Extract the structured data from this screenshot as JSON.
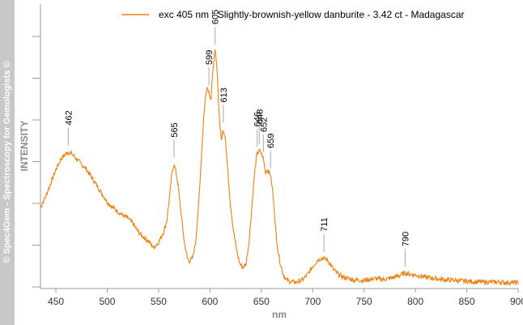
{
  "watermark": "© Spec4Gem - Spectroscopy for Gemologists ©",
  "colors": {
    "series": "#f08010",
    "axis": "#999999",
    "leader": "#aaaaaa"
  },
  "chart_data": {
    "type": "line",
    "title": "",
    "xlabel": "nm",
    "ylabel": "INTENSITY",
    "xlim": [
      435,
      900
    ],
    "ylim": [
      0,
      1
    ],
    "xticks": [
      450,
      500,
      550,
      600,
      650,
      700,
      750,
      800,
      850,
      900
    ],
    "xtick_labels": [
      "450",
      "500",
      "550",
      "600",
      "650",
      "700",
      "750",
      "800",
      "850",
      "900"
    ],
    "y_tick_count": 7,
    "y_tick_labels_shown": false,
    "grid": false,
    "legend_position": "top-center",
    "series": [
      {
        "name": "exc 405 nm - Slightly-brownish-yellow danburite - 3.42 ct - Madagascar",
        "color": "#f08010",
        "x": [
          435,
          440,
          445,
          450,
          455,
          460,
          462,
          465,
          470,
          475,
          480,
          485,
          490,
          495,
          500,
          505,
          510,
          515,
          520,
          525,
          530,
          535,
          540,
          545,
          550,
          555,
          558,
          561,
          563,
          565,
          567,
          569,
          571,
          573,
          575,
          578,
          580,
          583,
          586,
          589,
          592,
          594,
          596,
          597,
          599,
          601,
          603,
          605,
          607,
          609,
          611,
          613,
          615,
          617,
          620,
          623,
          626,
          629,
          632,
          635,
          638,
          641,
          643,
          645,
          646,
          648,
          650,
          652,
          654,
          656,
          659,
          661,
          663,
          665,
          668,
          671,
          674,
          677,
          680,
          685,
          690,
          695,
          700,
          705,
          708,
          711,
          714,
          717,
          720,
          725,
          730,
          740,
          750,
          760,
          770,
          780,
          790,
          800,
          810,
          820,
          830,
          840,
          850,
          860,
          870,
          880,
          890,
          900
        ],
        "y": [
          0.29,
          0.33,
          0.38,
          0.43,
          0.47,
          0.49,
          0.495,
          0.49,
          0.47,
          0.45,
          0.43,
          0.4,
          0.37,
          0.34,
          0.31,
          0.29,
          0.275,
          0.26,
          0.25,
          0.23,
          0.2,
          0.18,
          0.165,
          0.14,
          0.16,
          0.2,
          0.24,
          0.34,
          0.42,
          0.45,
          0.42,
          0.37,
          0.3,
          0.23,
          0.16,
          0.1,
          0.09,
          0.1,
          0.16,
          0.3,
          0.5,
          0.63,
          0.71,
          0.74,
          0.72,
          0.69,
          0.81,
          0.87,
          0.8,
          0.63,
          0.54,
          0.58,
          0.55,
          0.44,
          0.3,
          0.2,
          0.13,
          0.08,
          0.065,
          0.08,
          0.16,
          0.3,
          0.4,
          0.47,
          0.49,
          0.5,
          0.49,
          0.47,
          0.42,
          0.43,
          0.41,
          0.35,
          0.26,
          0.16,
          0.09,
          0.045,
          0.02,
          0.015,
          0.012,
          0.012,
          0.02,
          0.04,
          0.07,
          0.095,
          0.1,
          0.1,
          0.095,
          0.08,
          0.06,
          0.04,
          0.03,
          0.02,
          0.018,
          0.025,
          0.022,
          0.03,
          0.045,
          0.038,
          0.03,
          0.025,
          0.02,
          0.018,
          0.015,
          0.013,
          0.012,
          0.012,
          0.01,
          0.01
        ]
      }
    ],
    "annotations": [
      {
        "label": "462",
        "x": 462,
        "y": 0.495
      },
      {
        "label": "565",
        "x": 565,
        "y": 0.45
      },
      {
        "label": "599",
        "x": 599,
        "y": 0.72
      },
      {
        "label": "605",
        "x": 605,
        "y": 0.87
      },
      {
        "label": "613",
        "x": 613,
        "y": 0.58
      },
      {
        "label": "646",
        "x": 646,
        "y": 0.49
      },
      {
        "label": "648",
        "x": 648,
        "y": 0.5
      },
      {
        "label": "652",
        "x": 652,
        "y": 0.47
      },
      {
        "label": "659",
        "x": 659,
        "y": 0.41
      },
      {
        "label": "711",
        "x": 711,
        "y": 0.1
      },
      {
        "label": "790",
        "x": 790,
        "y": 0.045
      }
    ]
  }
}
